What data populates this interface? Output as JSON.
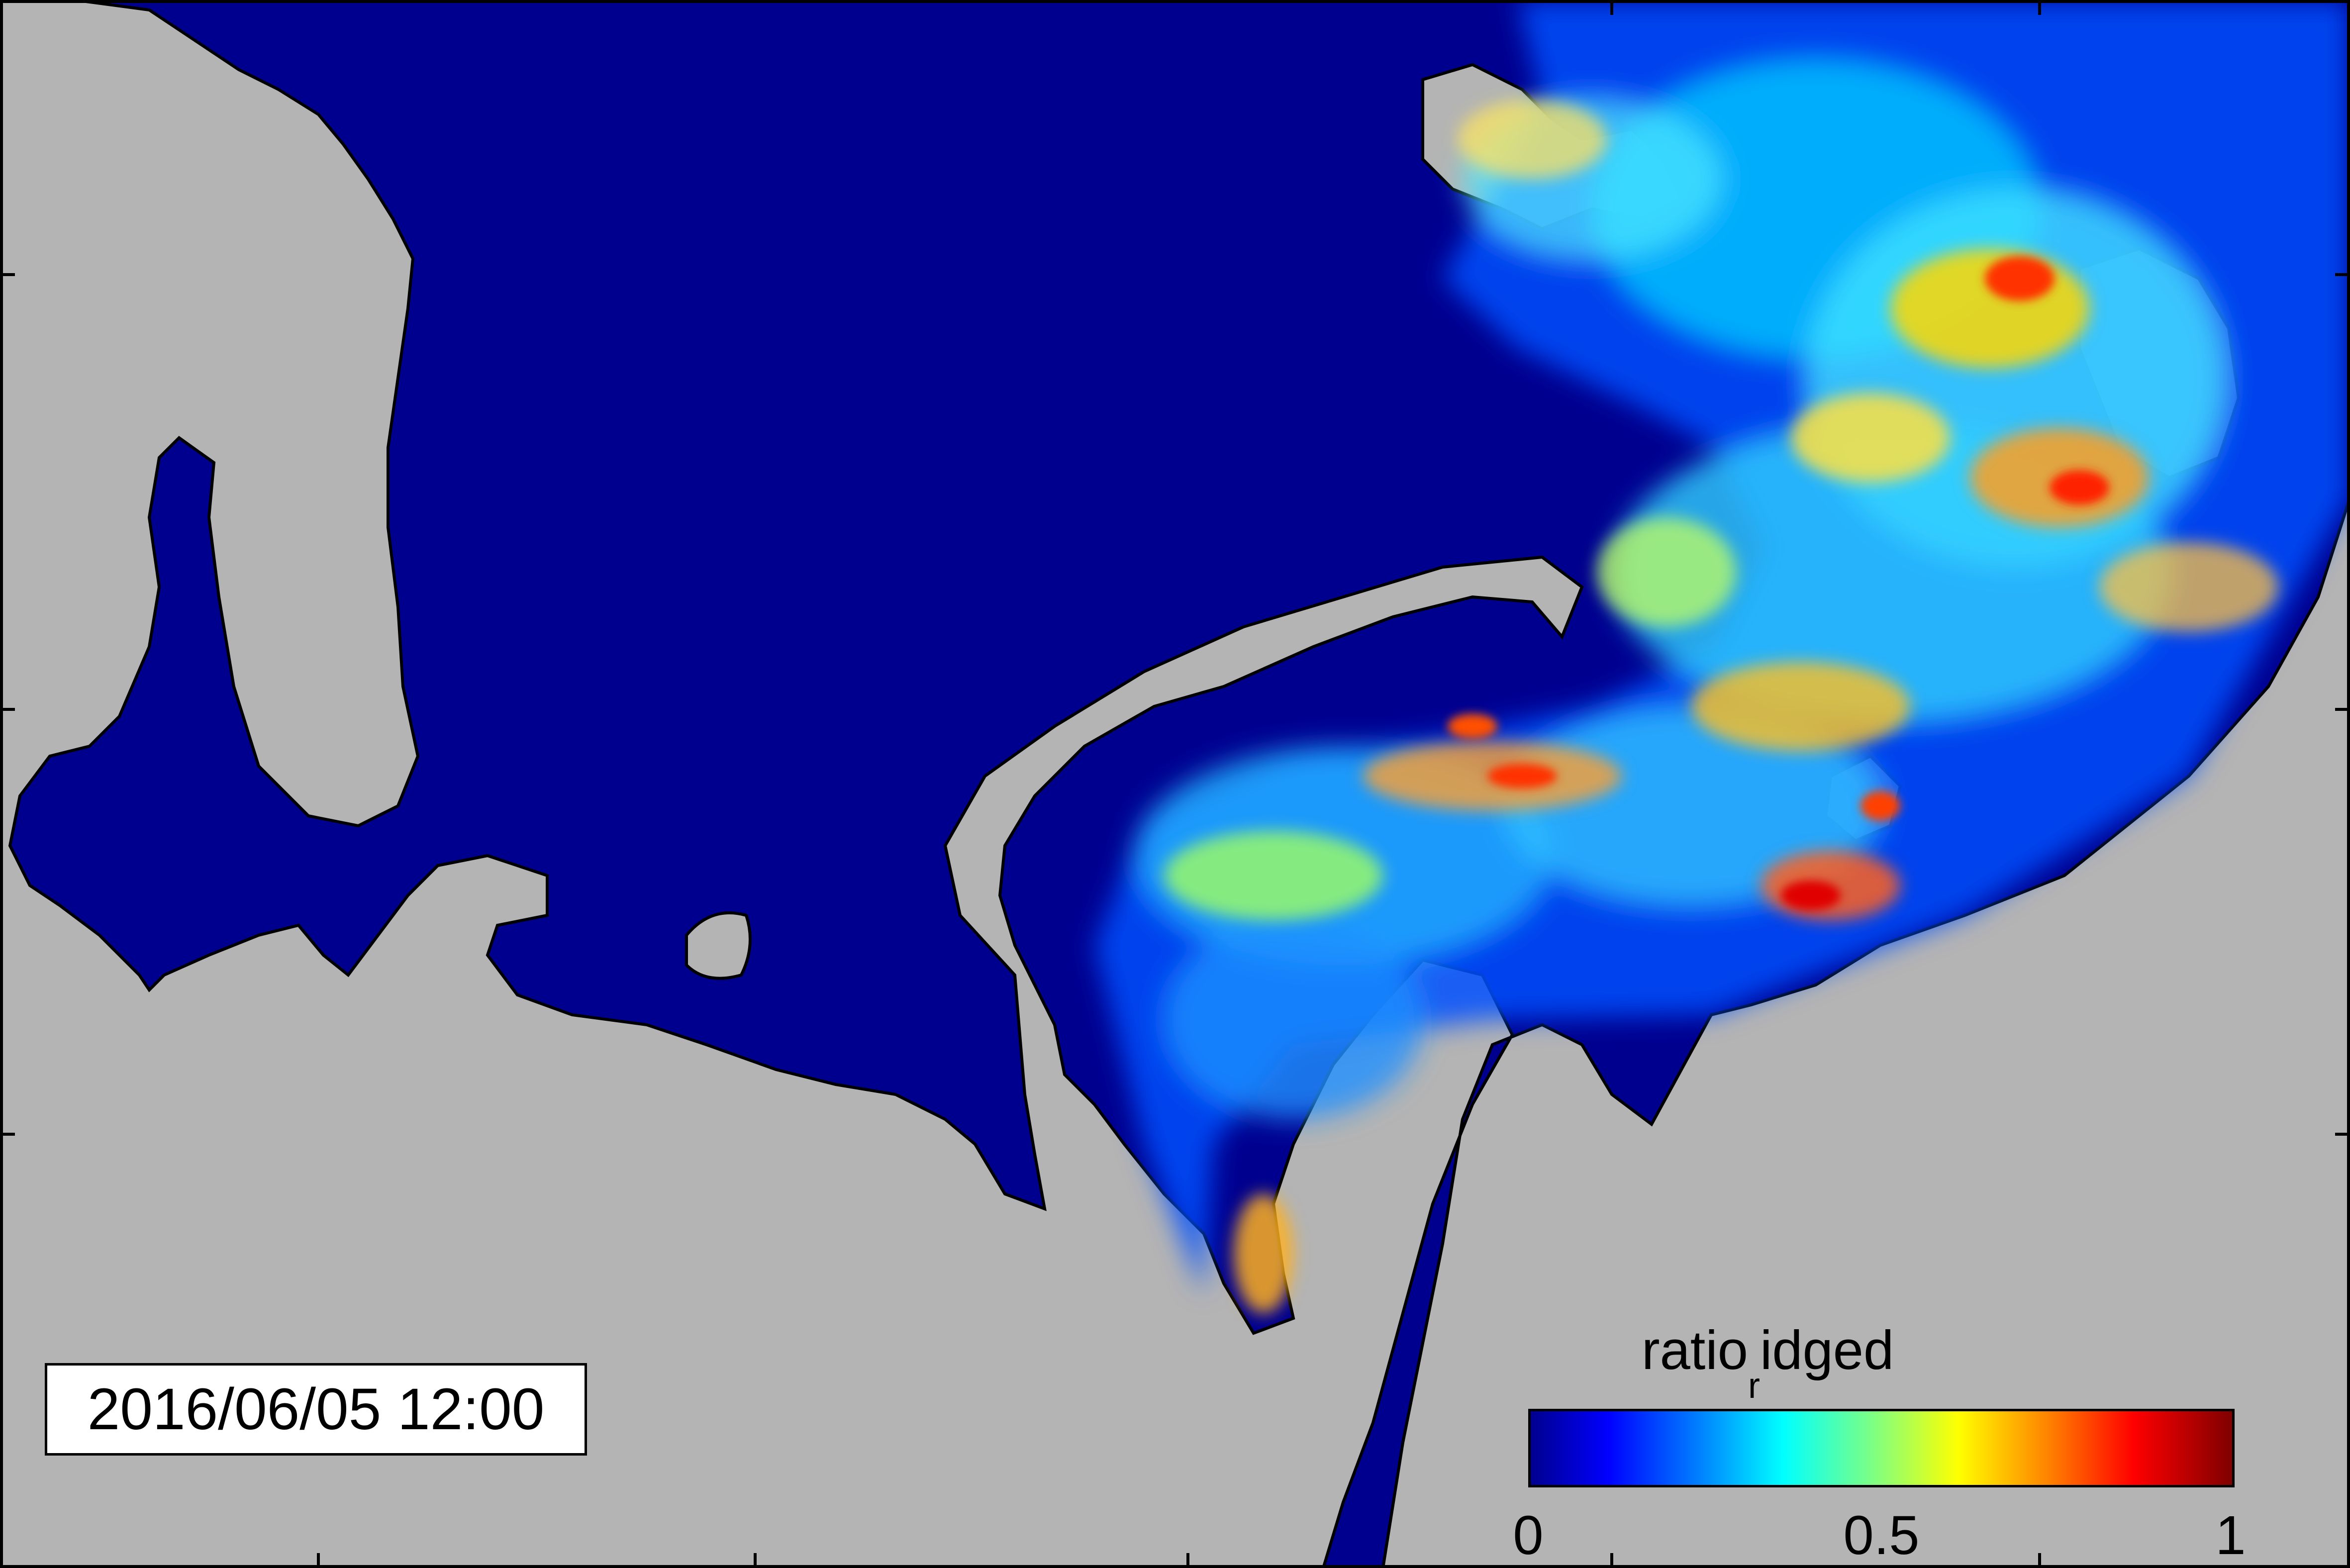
{
  "timestamp": "2016/06/05 12:00",
  "colorbar": {
    "label_main": "ratio",
    "label_sub": "r",
    "label_rest": "idged",
    "ticks": [
      "0",
      "0.5",
      "1"
    ],
    "colormap": "jet",
    "range": [
      0,
      1
    ]
  },
  "colors": {
    "land": "#b4b4b4",
    "open_water_low": "#00008f",
    "coastline": "#000000"
  }
}
